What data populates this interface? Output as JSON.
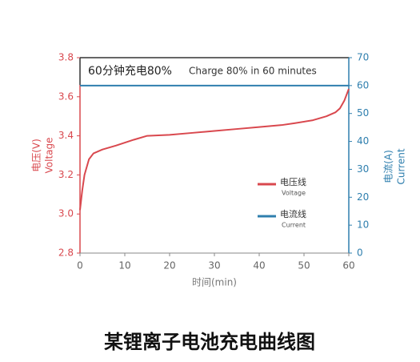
{
  "chart_data": {
    "type": "line",
    "annotation": [
      "60分钟充电80%",
      "Charge 80% in 60 minutes"
    ],
    "x_label": "时间(min)",
    "y_label": [
      "电压(V)",
      "Voltage"
    ],
    "y2_label": [
      "电流(A)",
      "Current"
    ],
    "caption": "某锂离子电池充电曲线图",
    "xlim": [
      0,
      60
    ],
    "xticks": [
      0,
      10,
      20,
      30,
      40,
      50,
      60
    ],
    "ylim": [
      2.8,
      3.8
    ],
    "yticks": [
      2.8,
      {
        "value": 3,
        "label": "3.0"
      },
      3.2,
      3.4,
      3.6,
      3.8
    ],
    "y2lim": [
      0,
      70
    ],
    "y2ticks": [
      0,
      10,
      20,
      30,
      40,
      50,
      60,
      70
    ],
    "grid": false,
    "legend": "right",
    "series": [
      {
        "name": "电压线",
        "name_en": "Voltage",
        "color": "#d9484e",
        "x": [
          0,
          0.5,
          1,
          2,
          3,
          5,
          8,
          12,
          15,
          20,
          25,
          30,
          35,
          40,
          45,
          48,
          52,
          55,
          57,
          58,
          59,
          60
        ],
        "values": [
          3.02,
          3.12,
          3.2,
          3.28,
          3.31,
          3.33,
          3.35,
          3.38,
          3.4,
          3.405,
          3.415,
          3.425,
          3.435,
          3.445,
          3.455,
          3.465,
          3.48,
          3.5,
          3.52,
          3.54,
          3.58,
          3.64
        ]
      },
      {
        "name": "电流线",
        "name_en": "Current",
        "color": "#2f7fae",
        "axis": "y2",
        "x": [
          0,
          60
        ],
        "values": [
          60,
          60
        ]
      }
    ]
  }
}
